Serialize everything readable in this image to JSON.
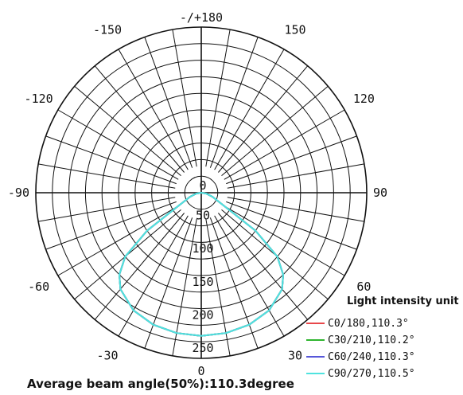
{
  "chart_data": {
    "type": "polar",
    "title": "",
    "angular_labels": [
      {
        "text": "-/+180",
        "angle": 180
      },
      {
        "text": "150",
        "angle": 150
      },
      {
        "text": "-150",
        "angle": -150
      },
      {
        "text": "120",
        "angle": 120
      },
      {
        "text": "-120",
        "angle": -120
      },
      {
        "text": "90",
        "angle": 90
      },
      {
        "text": "-90",
        "angle": -90
      },
      {
        "text": "60",
        "angle": 60
      },
      {
        "text": "-60",
        "angle": -60
      },
      {
        "text": "30",
        "angle": 30
      },
      {
        "text": "-30",
        "angle": -30
      },
      {
        "text": "0",
        "angle": 0
      }
    ],
    "radial_ticks": [
      "0",
      "50",
      "100",
      "150",
      "200",
      "250"
    ],
    "radial_max": 250,
    "ring_step": 25,
    "spoke_step_deg": 10,
    "grid": true,
    "legend_title": "Light intensity unit",
    "legend_position": "bottom-right",
    "series": [
      {
        "name": "C0/180,110.3°",
        "color": "#e8474a",
        "angles": [
          -90,
          -80,
          -70,
          -60,
          -55,
          -50,
          -45,
          -40,
          -30,
          -20,
          -10,
          0,
          10,
          20,
          30,
          40,
          45,
          50,
          55,
          60,
          70,
          80,
          90
        ],
        "values": [
          0,
          8,
          18,
          40,
          100,
          150,
          175,
          190,
          205,
          212,
          215,
          216,
          215,
          212,
          205,
          190,
          175,
          150,
          100,
          40,
          18,
          8,
          0
        ]
      },
      {
        "name": "C30/210,110.2°",
        "color": "#2fb52f",
        "angles": [
          -90,
          -80,
          -70,
          -60,
          -55,
          -50,
          -45,
          -40,
          -30,
          -20,
          -10,
          0,
          10,
          20,
          30,
          40,
          45,
          50,
          55,
          60,
          70,
          80,
          90
        ],
        "values": [
          0,
          8,
          18,
          40,
          100,
          150,
          175,
          190,
          205,
          212,
          215,
          216,
          215,
          212,
          205,
          190,
          175,
          150,
          100,
          40,
          18,
          8,
          0
        ]
      },
      {
        "name": "C60/240,110.3°",
        "color": "#5757d9",
        "angles": [
          -90,
          -80,
          -70,
          -60,
          -55,
          -50,
          -45,
          -40,
          -30,
          -20,
          -10,
          0,
          10,
          20,
          30,
          40,
          45,
          50,
          55,
          60,
          70,
          80,
          90
        ],
        "values": [
          0,
          8,
          18,
          40,
          100,
          150,
          175,
          190,
          205,
          212,
          215,
          216,
          215,
          212,
          205,
          190,
          175,
          150,
          100,
          40,
          18,
          8,
          0
        ]
      },
      {
        "name": "C90/270,110.5°",
        "color": "#4fe3df",
        "angles": [
          -90,
          -80,
          -70,
          -60,
          -55,
          -50,
          -45,
          -40,
          -30,
          -20,
          -10,
          0,
          10,
          20,
          30,
          40,
          45,
          50,
          55,
          60,
          70,
          80,
          90
        ],
        "values": [
          0,
          8,
          18,
          40,
          100,
          150,
          175,
          190,
          205,
          212,
          215,
          216,
          215,
          212,
          205,
          190,
          175,
          150,
          100,
          40,
          18,
          8,
          0
        ]
      }
    ],
    "caption": "Average beam angle(50%):110.3degree"
  }
}
